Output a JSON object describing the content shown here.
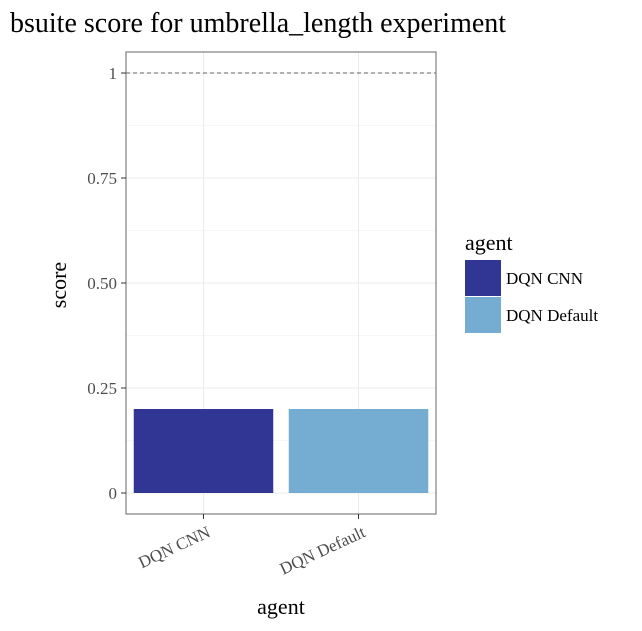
{
  "chart_data": {
    "type": "bar",
    "title": "bsuite score for umbrella_length experiment",
    "xlabel": "agent",
    "ylabel": "score",
    "categories": [
      "DQN CNN",
      "DQN Default"
    ],
    "values": [
      0.2,
      0.2
    ],
    "colors": [
      "#313695",
      "#74add1"
    ],
    "ylim": [
      -0.05,
      1.05
    ],
    "yticks": [
      0,
      0.25,
      0.5,
      0.75,
      1
    ],
    "ytick_labels": [
      "0",
      "0.25",
      "0.50",
      "0.75",
      "1"
    ],
    "reference_line": 1,
    "grid": true,
    "legend": {
      "title": "agent",
      "entries": [
        "DQN CNN",
        "DQN Default"
      ],
      "placement": "right"
    }
  }
}
